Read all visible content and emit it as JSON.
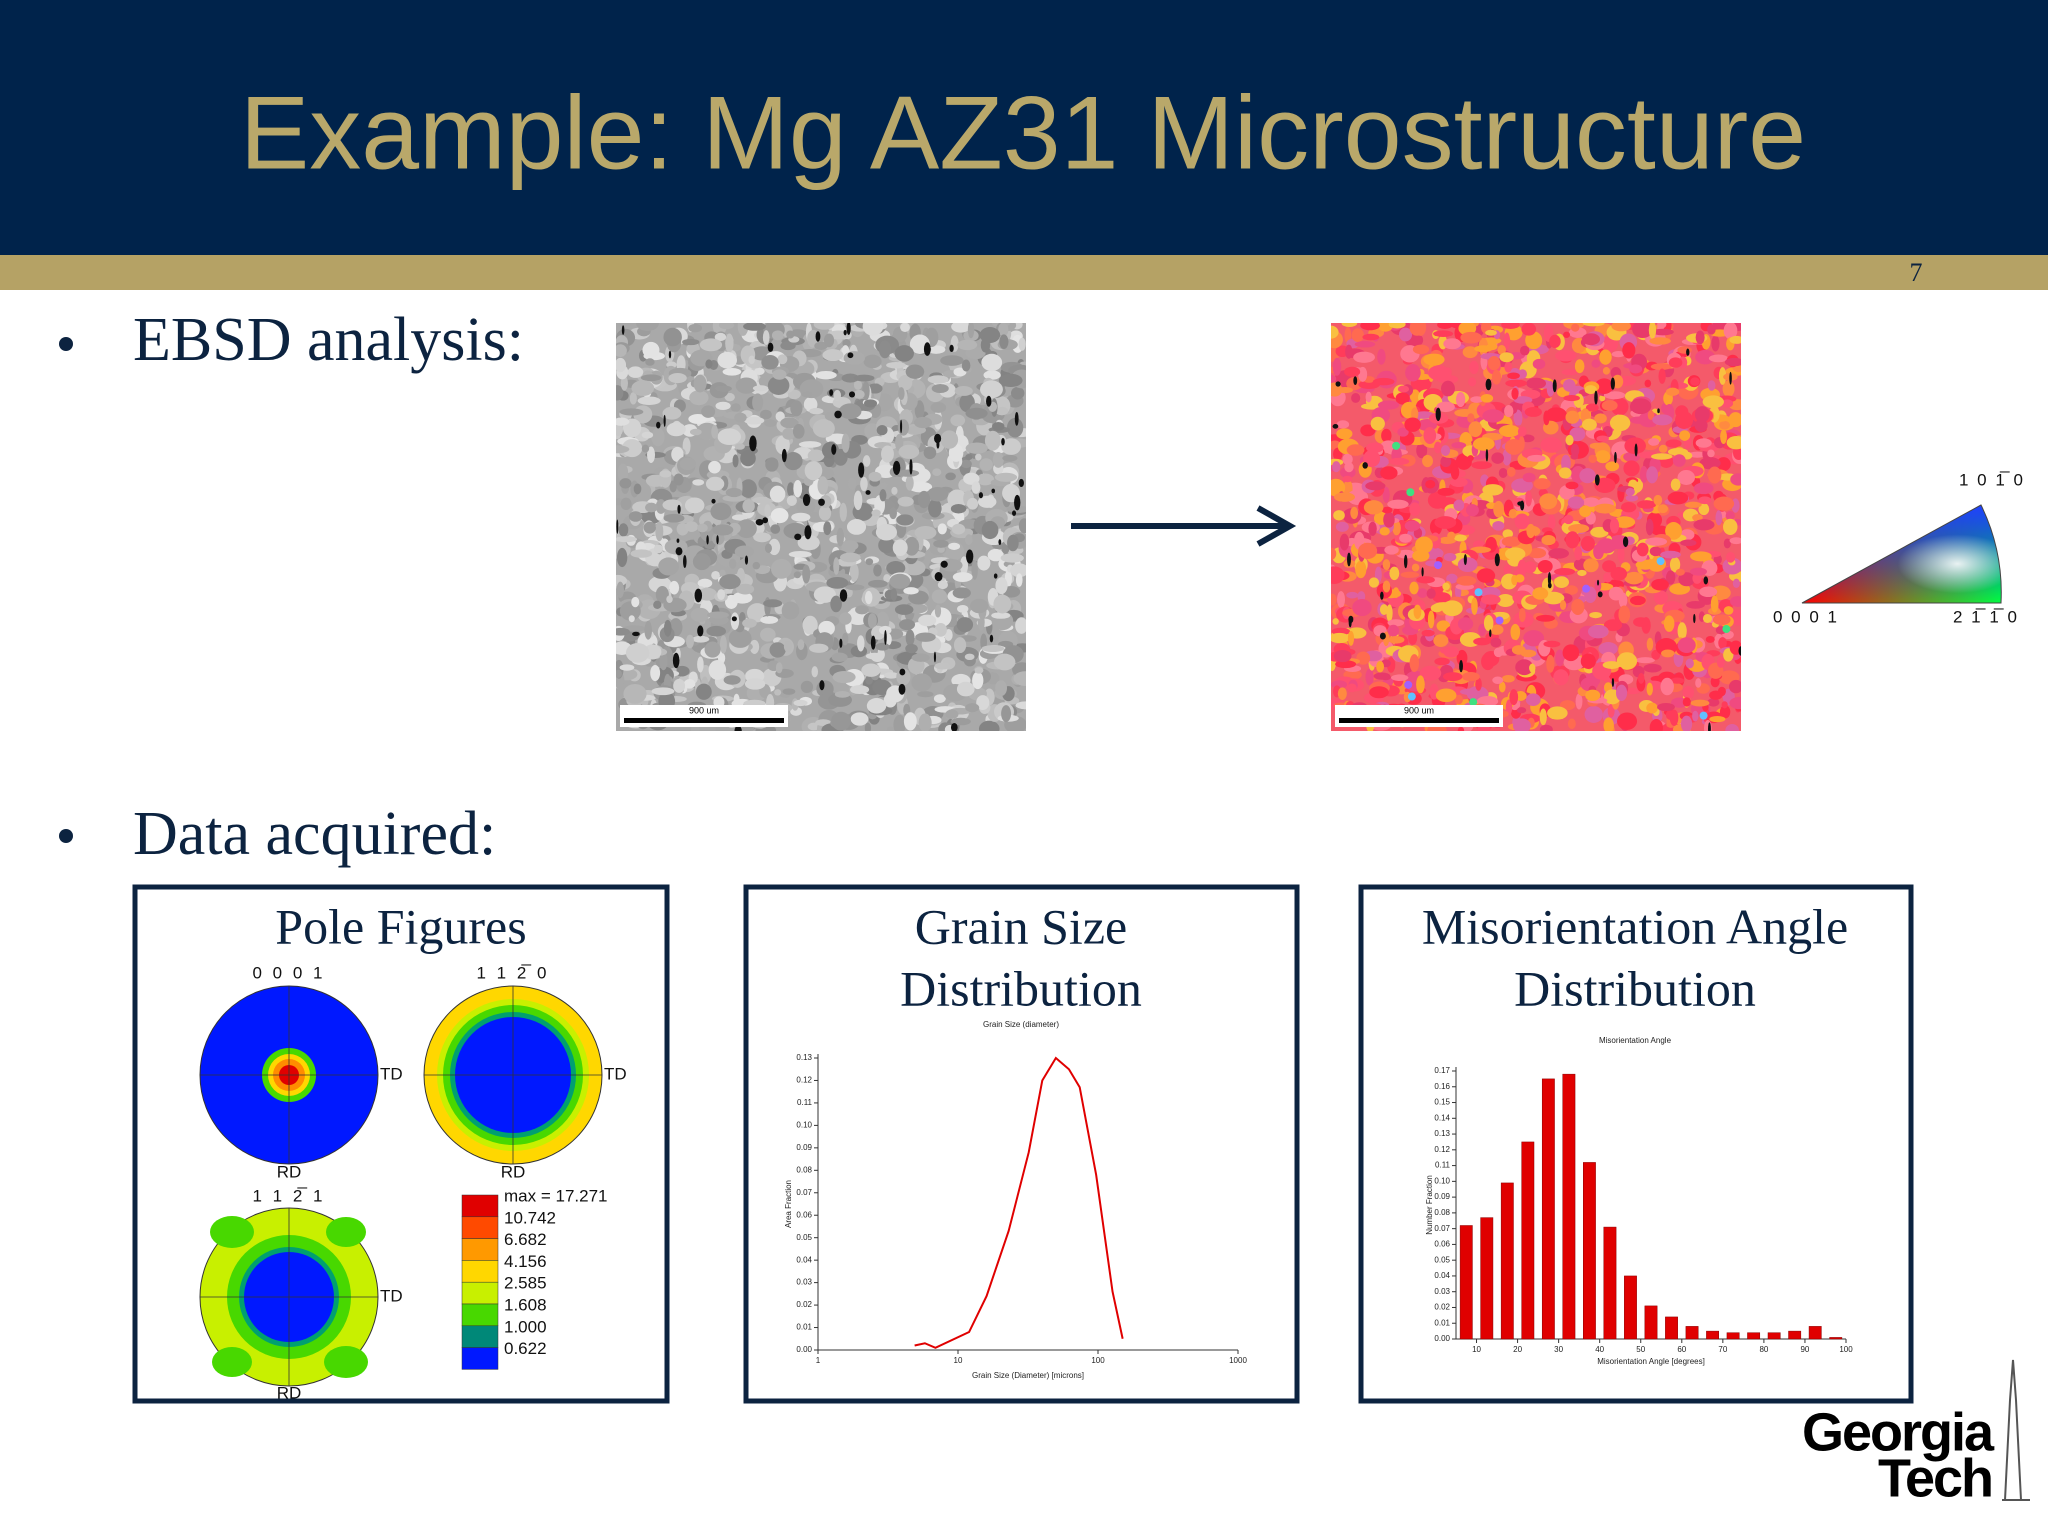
{
  "header": {
    "title": "Example: Mg AZ31 Microstructure",
    "page_number": "7"
  },
  "bullets": [
    "EBSD analysis:",
    "Data acquired:"
  ],
  "micrographs": {
    "scale_bars": [
      "900 um",
      "900 um"
    ]
  },
  "ipf_key": {
    "labels": [
      "1 0 1̅ 0",
      "0 0 0 1",
      "2 1̅ 1̅ 0"
    ]
  },
  "panels": [
    {
      "title": [
        "Pole Figures"
      ]
    },
    {
      "title": [
        "Grain Size",
        "Distribution"
      ]
    },
    {
      "title": [
        "Misorientation Angle",
        "Distribution"
      ]
    }
  ],
  "pole_figures": {
    "figures": [
      {
        "label": "0 0 0 1",
        "td": "TD",
        "rd": "RD"
      },
      {
        "label": "1 1 2̅ 0",
        "td": "TD",
        "rd": "RD"
      },
      {
        "label": "1 1 2̅ 1",
        "td": "TD",
        "rd": "RD"
      }
    ],
    "legend": [
      "max = 17.271",
      "10.742",
      "6.682",
      "4.156",
      "2.585",
      "1.608",
      "1.000",
      "0.622"
    ]
  },
  "logo": {
    "line1": "Georgia",
    "line2": "Tech"
  },
  "chart_data": [
    {
      "type": "line",
      "title": "Grain Size (diameter)",
      "x_label": "Grain Size (Diameter) [microns]",
      "y_label": "Area Fraction",
      "xscale": "log",
      "xlim": [
        1,
        1000
      ],
      "xticks": [
        1,
        10,
        100,
        1000
      ],
      "ylim": [
        0,
        0.13
      ],
      "yticks": [
        {
          "value": 0,
          "label": "0.00"
        },
        {
          "value": 0.01,
          "label": "0.01"
        },
        {
          "value": 0.02,
          "label": "0.02"
        },
        {
          "value": 0.03,
          "label": "0.03"
        },
        {
          "value": 0.04,
          "label": "0.04"
        },
        {
          "value": 0.05,
          "label": "0.05"
        },
        {
          "value": 0.06,
          "label": "0.06"
        },
        {
          "value": 0.07,
          "label": "0.07"
        },
        {
          "value": 0.08,
          "label": "0.08"
        },
        {
          "value": 0.09,
          "label": "0.09"
        },
        {
          "value": 0.1,
          "label": "0.10"
        },
        {
          "value": 0.11,
          "label": "0.11"
        },
        {
          "value": 0.12,
          "label": "0.12"
        },
        {
          "value": 0.13,
          "label": "0.13"
        }
      ],
      "color": "#e00000",
      "x": [
        4.9,
        5.8,
        6.9,
        12,
        16,
        23,
        32,
        40,
        50,
        62,
        74,
        97,
        127,
        150
      ],
      "values": [
        0.002,
        0.003,
        0.001,
        0.008,
        0.024,
        0.053,
        0.088,
        0.12,
        0.13,
        0.125,
        0.117,
        0.078,
        0.026,
        0.005
      ]
    },
    {
      "type": "bar",
      "title": "Misorientation Angle",
      "x_label": "Misorientation Angle [degrees]",
      "y_label": "Number Fraction",
      "xlim": [
        5,
        100
      ],
      "xticks": [
        10,
        20,
        30,
        40,
        50,
        60,
        70,
        80,
        90,
        100
      ],
      "ylim": [
        0,
        0.17
      ],
      "yticks": [
        {
          "value": 0,
          "label": "0.00"
        },
        {
          "value": 0.01,
          "label": "0.01"
        },
        {
          "value": 0.02,
          "label": "0.02"
        },
        {
          "value": 0.03,
          "label": "0.03"
        },
        {
          "value": 0.04,
          "label": "0.04"
        },
        {
          "value": 0.05,
          "label": "0.05"
        },
        {
          "value": 0.06,
          "label": "0.06"
        },
        {
          "value": 0.07,
          "label": "0.07"
        },
        {
          "value": 0.08,
          "label": "0.08"
        },
        {
          "value": 0.09,
          "label": "0.09"
        },
        {
          "value": 0.1,
          "label": "0.10"
        },
        {
          "value": 0.11,
          "label": "0.11"
        },
        {
          "value": 0.12,
          "label": "0.12"
        },
        {
          "value": 0.13,
          "label": "0.13"
        },
        {
          "value": 0.14,
          "label": "0.14"
        },
        {
          "value": 0.15,
          "label": "0.15"
        },
        {
          "value": 0.16,
          "label": "0.16"
        },
        {
          "value": 0.17,
          "label": "0.17"
        }
      ],
      "color": "#e00000",
      "x": [
        7.5,
        12.5,
        17.5,
        22.5,
        27.5,
        32.5,
        37.5,
        42.5,
        47.5,
        52.5,
        57.5,
        62.5,
        67.5,
        72.5,
        77.5,
        82.5,
        87.5,
        92.5,
        97.5
      ],
      "values": [
        0.072,
        0.077,
        0.099,
        0.125,
        0.165,
        0.168,
        0.112,
        0.071,
        0.04,
        0.021,
        0.014,
        0.008,
        0.005,
        0.004,
        0.004,
        0.004,
        0.005,
        0.008,
        0.001
      ]
    }
  ]
}
